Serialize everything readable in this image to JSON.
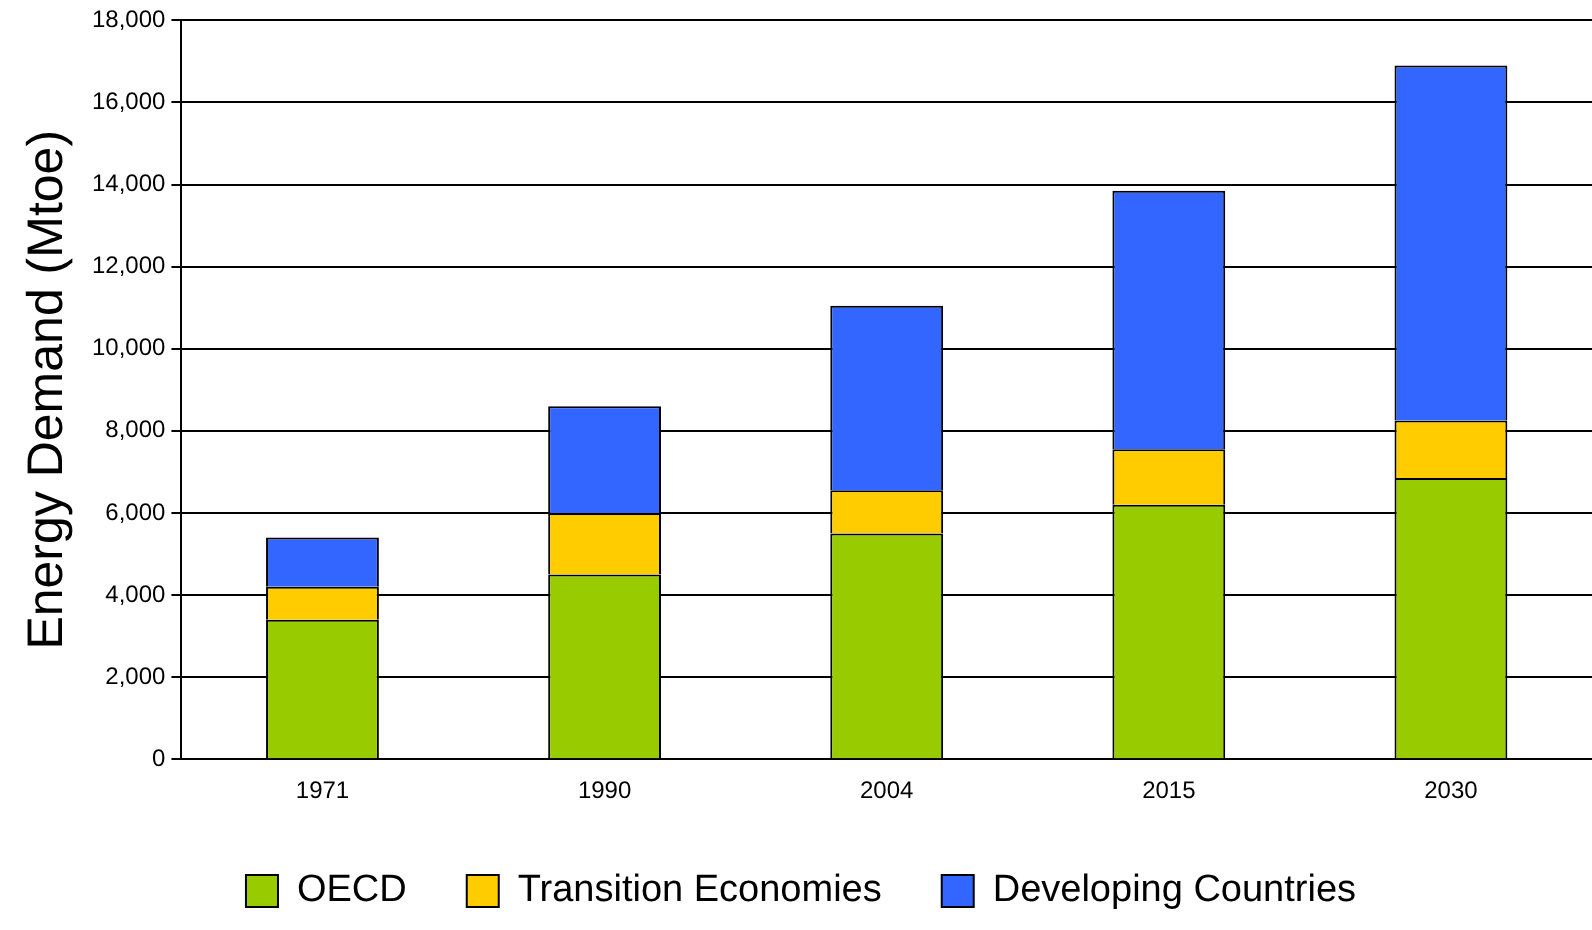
{
  "chart_data": {
    "type": "bar",
    "stacked": true,
    "ylabel": "Energy Demand (Mtoe)",
    "categories": [
      "1971",
      "1990",
      "2004",
      "2015",
      "2030"
    ],
    "series": [
      {
        "name": "OECD",
        "color": "#99cc00",
        "values": [
          3400,
          4500,
          5500,
          6200,
          6850
        ]
      },
      {
        "name": "Transition Economies",
        "color": "#ffcc00",
        "values": [
          800,
          1500,
          1050,
          1350,
          1400
        ]
      },
      {
        "name": "Developing Countries",
        "color": "#3366ff",
        "values": [
          1200,
          2600,
          4500,
          6300,
          8650
        ]
      }
    ],
    "ylim": [
      0,
      18000
    ],
    "yticks": [
      0,
      {
        "value": 2000,
        "label": "2,000"
      },
      {
        "value": 4000,
        "label": "4,000"
      },
      {
        "value": 6000,
        "label": "6,000"
      },
      {
        "value": 8000,
        "label": "8,000"
      },
      {
        "value": 10000,
        "label": "10,000"
      },
      {
        "value": 12000,
        "label": "12,000"
      },
      {
        "value": 14000,
        "label": "14,000"
      },
      {
        "value": 16000,
        "label": "16,000"
      },
      {
        "value": 18000,
        "label": "18,000"
      }
    ],
    "grid": "y",
    "legend": "bottom"
  }
}
